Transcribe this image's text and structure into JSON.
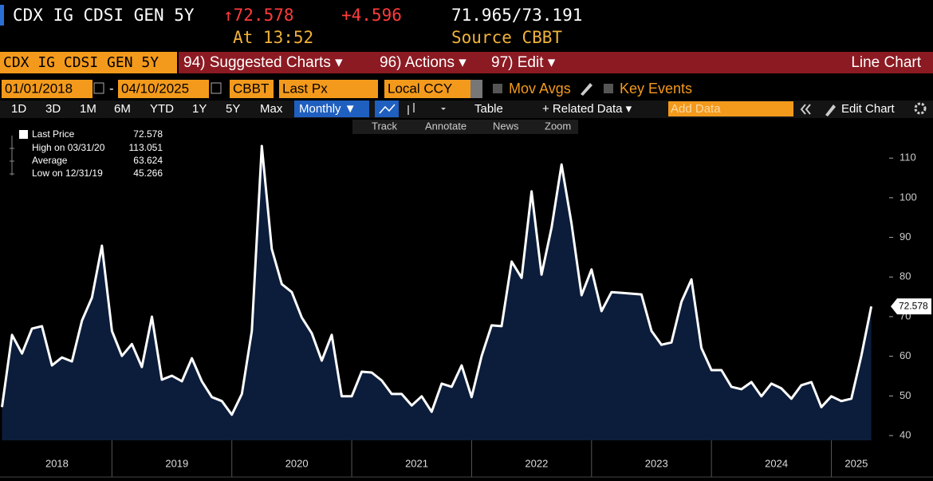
{
  "header": {
    "ticker": "CDX IG CDSI GEN 5Y",
    "last": "↑72.578",
    "change": "+4.596",
    "bid_ask": "71.965/73.191",
    "time": "At 13:52",
    "source": "Source CBBT"
  },
  "toolbar": {
    "security": "CDX IG CDSI GEN 5Y",
    "menus": [
      "94) Suggested Charts ▾",
      "96) Actions ▾",
      "97) Edit ▾"
    ],
    "chart_type": "Line Chart"
  },
  "settings": {
    "start_date": "01/01/2018",
    "separator": "-",
    "end_date": "04/10/2025",
    "source": "CBBT",
    "field": "Last Px",
    "currency": "Local CCY",
    "options": [
      "Mov Avgs",
      "Key Events"
    ]
  },
  "ranges": {
    "buttons": [
      "1D",
      "3D",
      "1M",
      "6M",
      "YTD",
      "1Y",
      "5Y",
      "Max"
    ],
    "period": "Monthly ▼",
    "table": "Table",
    "related": "+ Related Data ▾",
    "add_data": "Add Data",
    "edit": "Edit Chart"
  },
  "tools": [
    "Track",
    "Annotate",
    "News",
    "Zoom"
  ],
  "legend": [
    {
      "label": "High on 03/31/20",
      "value": "113.051"
    },
    {
      "label": "Average",
      "value": "63.624"
    },
    {
      "label": "Low on 12/31/19",
      "value": "45.266"
    }
  ],
  "chart_data": {
    "type": "line",
    "x_labels": [
      "2018",
      "2019",
      "2020",
      "2021",
      "2022",
      "2023",
      "2024",
      "2025"
    ],
    "series": [
      {
        "name": "Last Price",
        "color": "#ffffff",
        "values": [
          47.2,
          65.4,
          60.7,
          67,
          67.6,
          57.7,
          59.7,
          58.7,
          69,
          74.8,
          87.9,
          66.4,
          60.1,
          63.1,
          57.3,
          70,
          54.1,
          55.1,
          53.7,
          59.5,
          53.7,
          49.7,
          48.7,
          45.266,
          50.5,
          66.4,
          113.051,
          87.1,
          78.2,
          76.2,
          69.8,
          65.8,
          58.9,
          65.4,
          49.9,
          49.9,
          56.1,
          55.9,
          53.9,
          50.5,
          50.5,
          47.6,
          49.9,
          46,
          53.1,
          52.3,
          57.7,
          49.7,
          60.1,
          67.8,
          67.6,
          83.9,
          79.8,
          101.6,
          80.6,
          92.5,
          108.4,
          93.5,
          75.4,
          81.9,
          71.4,
          76.2,
          76,
          75.8,
          75.6,
          66.4,
          62.9,
          63.5,
          73.8,
          79.4,
          62.1,
          56.5,
          56.5,
          52.3,
          51.7,
          53.5,
          49.9,
          53.1,
          51.9,
          49.3,
          52.7,
          53.5,
          47.2,
          49.9,
          48.7,
          49.3,
          60.1,
          72.578
        ]
      }
    ],
    "fill": "#0c1d3b",
    "ylim": [
      38.8,
      119.7
    ],
    "yticks": [
      40,
      50,
      60,
      70,
      80,
      90,
      100,
      110
    ],
    "grid": false
  }
}
